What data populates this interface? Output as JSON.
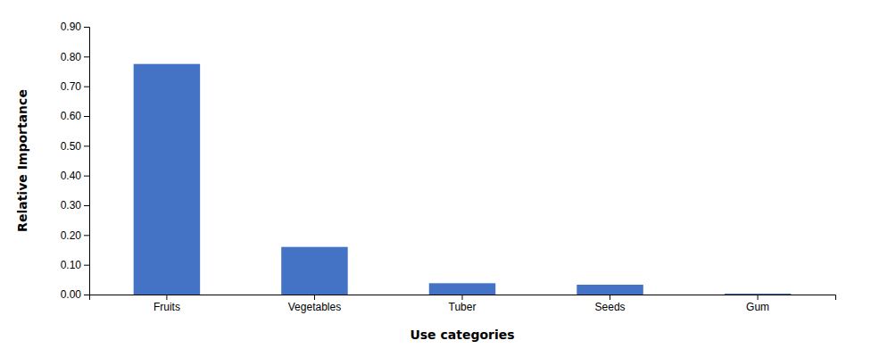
{
  "chart_data": {
    "type": "bar",
    "xlabel": "Use categories",
    "ylabel": "Relative Importance",
    "categories": [
      "Fruits",
      "Vegetables",
      "Tuber",
      "Seeds",
      "Gum"
    ],
    "values": [
      0.775,
      0.16,
      0.038,
      0.033,
      0.003
    ],
    "color": "#4472c4",
    "ylim": [
      0.0,
      0.9
    ],
    "yticks": [
      {
        "value": 0.0,
        "label": "0.00"
      },
      {
        "value": 0.1,
        "label": "0.10"
      },
      {
        "value": 0.2,
        "label": "0.20"
      },
      {
        "value": 0.3,
        "label": "0.30"
      },
      {
        "value": 0.4,
        "label": "0.40"
      },
      {
        "value": 0.5,
        "label": "0.50"
      },
      {
        "value": 0.6,
        "label": "0.60"
      },
      {
        "value": 0.7,
        "label": "0.70"
      },
      {
        "value": 0.8,
        "label": "0.80"
      },
      {
        "value": 0.9,
        "label": "0.90"
      }
    ],
    "grid": false
  }
}
